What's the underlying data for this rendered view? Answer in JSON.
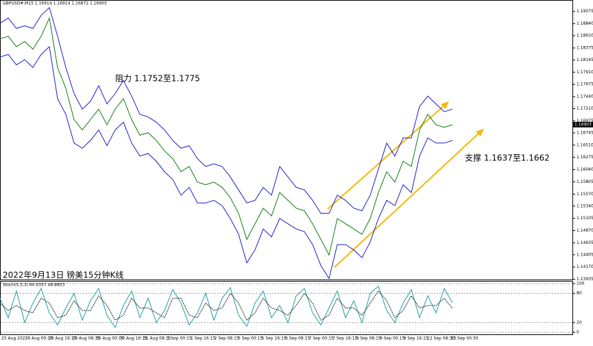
{
  "header": "GBPUSD#,M15  1.16914 1.16914 1.16872 1.16903",
  "annotations": {
    "resistance": "阻力 1.1752至1.1775",
    "support": "支撑 1.1637至1.1662",
    "caption": "2022年9月13日 镑美15分钟K线"
  },
  "current_price": {
    "value": 1.16903,
    "label": "1.16903"
  },
  "chart_data": [
    {
      "type": "line",
      "ylim": [
        1.1393,
        1.1919
      ],
      "yticks": [
        {
          "value": 1.19075,
          "label": "1.19075"
        },
        {
          "value": 1.1884,
          "label": "1.18840"
        },
        {
          "value": 1.1861,
          "label": "1.18610"
        },
        {
          "value": 1.18375,
          "label": "1.18375"
        },
        {
          "value": 1.18145,
          "label": "1.18145"
        },
        {
          "value": 1.1791,
          "label": "1.17910"
        },
        {
          "value": 1.17675,
          "label": "1.17675"
        },
        {
          "value": 1.1744,
          "label": "1.17440"
        },
        {
          "value": 1.1721,
          "label": "1.17210"
        },
        {
          "value": 1.16975,
          "label": "1.16975"
        },
        {
          "value": 1.16745,
          "label": "1.16745"
        },
        {
          "value": 1.1651,
          "label": "1.16510"
        },
        {
          "value": 1.16275,
          "label": "1.16275"
        },
        {
          "value": 1.1604,
          "label": "1.16040"
        },
        {
          "value": 1.15805,
          "label": "1.15805"
        },
        {
          "value": 1.1557,
          "label": "1.15570"
        },
        {
          "value": 1.1534,
          "label": "1.15340"
        },
        {
          "value": 1.15105,
          "label": "1.15105"
        },
        {
          "value": 1.1487,
          "label": "1.14870"
        },
        {
          "value": 1.14635,
          "label": "1.14635"
        },
        {
          "value": 1.14405,
          "label": "1.14405"
        },
        {
          "value": 1.1417,
          "label": "1.14170"
        },
        {
          "value": 1.13935,
          "label": "1.13935"
        }
      ],
      "xlabels": [
        "25 Aug 2022",
        "26 Aug 00:15",
        "26 Aug 16:15",
        "29 Aug 08:15",
        "30 Aug 00:15",
        "30 Aug 16:15",
        "31 Aug 08:15",
        "1 Sep 00:15",
        "1 Sep 16:15",
        "2 Sep 08:15",
        "5 Sep 00:15",
        "5 Sep 16:15",
        "6 Sep 08:15",
        "7 Sep 00:15",
        "7 Sep 16:15",
        "8 Sep 08:15",
        "9 Sep 00:15",
        "9 Sep 16:15",
        "12 Sep 08:30",
        "13 Sep 00:30"
      ],
      "series": [
        {
          "color": "#0c7a0c",
          "values": [
            1.1855,
            1.186,
            1.184,
            1.185,
            1.1835,
            1.186,
            1.1895,
            1.18,
            1.176,
            1.17,
            1.168,
            1.17,
            1.172,
            1.169,
            1.172,
            1.174,
            1.17,
            1.167,
            1.1675,
            1.166,
            1.164,
            1.1625,
            1.16,
            1.161,
            1.158,
            1.1575,
            1.158,
            1.157,
            1.155,
            1.152,
            1.147,
            1.15,
            1.153,
            1.1515,
            1.156,
            1.1545,
            1.153,
            1.1525,
            1.15,
            1.147,
            1.144,
            1.151,
            1.15,
            1.149,
            1.148,
            1.151,
            1.156,
            1.16,
            1.158,
            1.162,
            1.161,
            1.168,
            1.171,
            1.169,
            1.1685,
            1.169
          ]
        },
        {
          "color": "#1a1ad0",
          "values": [
            1.1885,
            1.1895,
            1.1875,
            1.188,
            1.1875,
            1.19,
            1.1915,
            1.186,
            1.18,
            1.175,
            1.172,
            1.1735,
            1.1765,
            1.173,
            1.175,
            1.1775,
            1.1745,
            1.171,
            1.1705,
            1.1695,
            1.168,
            1.166,
            1.1645,
            1.165,
            1.1625,
            1.161,
            1.1615,
            1.161,
            1.159,
            1.1565,
            1.154,
            1.1545,
            1.157,
            1.1555,
            1.161,
            1.159,
            1.157,
            1.1565,
            1.1545,
            1.152,
            1.152,
            1.1555,
            1.1545,
            1.153,
            1.1525,
            1.1555,
            1.1605,
            1.1655,
            1.163,
            1.1665,
            1.1665,
            1.1725,
            1.1745,
            1.173,
            1.1715,
            1.172
          ]
        },
        {
          "color": "#1a1ad0",
          "values": [
            1.182,
            1.1825,
            1.1805,
            1.1815,
            1.18,
            1.1825,
            1.184,
            1.174,
            1.171,
            1.1655,
            1.1645,
            1.166,
            1.168,
            1.165,
            1.168,
            1.1695,
            1.1655,
            1.163,
            1.1635,
            1.162,
            1.16,
            1.1585,
            1.1555,
            1.157,
            1.154,
            1.154,
            1.1545,
            1.1535,
            1.151,
            1.148,
            1.1425,
            1.145,
            1.149,
            1.1475,
            1.151,
            1.15,
            1.149,
            1.1485,
            1.146,
            1.142,
            1.1395,
            1.146,
            1.146,
            1.145,
            1.1435,
            1.1465,
            1.151,
            1.1545,
            1.1535,
            1.1575,
            1.156,
            1.163,
            1.1665,
            1.1655,
            1.1655,
            1.166
          ]
        }
      ]
    },
    {
      "type": "stochastic",
      "label": "Stoch(5,3,3) 60.6357 48.8853",
      "ylim": [
        0,
        100
      ],
      "yticks": [
        100,
        80,
        20,
        0
      ],
      "series": [
        {
          "color": "#1aa0a0",
          "values": [
            70,
            30,
            85,
            20,
            60,
            90,
            40,
            15,
            50,
            80,
            25,
            65,
            90,
            35,
            10,
            55,
            85,
            30,
            70,
            20,
            45,
            88,
            60,
            15,
            40,
            80,
            25,
            70,
            92,
            35,
            12,
            60,
            85,
            30,
            55,
            20,
            75,
            90,
            40,
            15,
            50,
            85,
            30,
            65,
            20,
            80,
            95,
            45,
            20,
            60,
            88,
            30,
            75,
            40,
            90,
            61
          ]
        },
        {
          "color": "#222222",
          "values": [
            60,
            45,
            55,
            45,
            40,
            70,
            60,
            30,
            35,
            65,
            45,
            45,
            75,
            55,
            25,
            35,
            70,
            50,
            50,
            40,
            30,
            70,
            70,
            35,
            30,
            60,
            45,
            50,
            80,
            60,
            25,
            40,
            70,
            50,
            45,
            35,
            55,
            80,
            60,
            25,
            35,
            70,
            50,
            50,
            35,
            60,
            85,
            65,
            30,
            45,
            75,
            50,
            55,
            55,
            70,
            49
          ]
        }
      ]
    }
  ]
}
